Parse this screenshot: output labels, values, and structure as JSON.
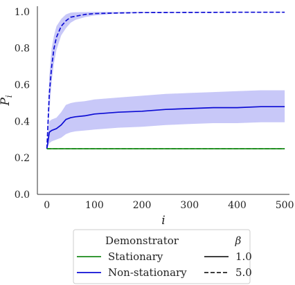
{
  "chart_data": {
    "type": "line",
    "xlabel": "i",
    "ylabel": "P_i",
    "ylabel_main": "P",
    "ylabel_sub": "i",
    "xlim": [
      -20,
      510
    ],
    "ylim": [
      0.0,
      1.03
    ],
    "xticks": [
      0,
      100,
      200,
      300,
      400,
      500
    ],
    "yticks": [
      0.0,
      0.2,
      0.4,
      0.6,
      0.8,
      1.0
    ],
    "xtick_labels": [
      "0",
      "100",
      "200",
      "300",
      "400",
      "500"
    ],
    "ytick_labels": [
      "0.0",
      "0.2",
      "0.4",
      "0.6",
      "0.8",
      "1.0"
    ],
    "grid": false,
    "series": [
      {
        "demonstrator": "Non-stationary",
        "beta": "5.0",
        "color": "#0b0bd4",
        "dash": true,
        "x": [
          0,
          5,
          10,
          15,
          20,
          30,
          40,
          50,
          60,
          80,
          100,
          150,
          200,
          300,
          400,
          500
        ],
        "y": [
          0.25,
          0.55,
          0.7,
          0.8,
          0.86,
          0.92,
          0.95,
          0.97,
          0.975,
          0.985,
          0.99,
          0.993,
          0.995,
          0.996,
          0.997,
          0.997
        ],
        "lower": [
          0.25,
          0.45,
          0.62,
          0.72,
          0.79,
          0.87,
          0.91,
          0.94,
          0.955,
          0.97,
          0.98,
          0.99,
          0.993,
          0.995,
          0.996,
          0.996
        ],
        "upper": [
          0.25,
          0.65,
          0.8,
          0.87,
          0.92,
          0.96,
          0.985,
          0.995,
          0.997,
          0.998,
          0.999,
          0.999,
          0.999,
          0.999,
          0.999,
          0.999
        ]
      },
      {
        "demonstrator": "Non-stationary",
        "beta": "1.0",
        "color": "#0b0bd4",
        "dash": false,
        "x": [
          0,
          5,
          10,
          20,
          30,
          40,
          50,
          60,
          80,
          100,
          150,
          200,
          250,
          300,
          350,
          400,
          450,
          500
        ],
        "y": [
          0.25,
          0.34,
          0.35,
          0.36,
          0.38,
          0.41,
          0.42,
          0.425,
          0.43,
          0.44,
          0.45,
          0.455,
          0.465,
          0.47,
          0.475,
          0.475,
          0.48,
          0.48
        ],
        "lower": [
          0.25,
          0.28,
          0.29,
          0.3,
          0.31,
          0.33,
          0.34,
          0.345,
          0.35,
          0.355,
          0.365,
          0.37,
          0.38,
          0.385,
          0.39,
          0.39,
          0.395,
          0.395
        ],
        "upper": [
          0.25,
          0.4,
          0.41,
          0.42,
          0.45,
          0.49,
          0.5,
          0.505,
          0.51,
          0.52,
          0.53,
          0.54,
          0.55,
          0.555,
          0.56,
          0.565,
          0.57,
          0.57
        ]
      },
      {
        "demonstrator": "Stationary",
        "beta": "5.0",
        "color": "#1a8a1a",
        "dash": true,
        "x": [
          0,
          500
        ],
        "y": [
          0.25,
          0.25
        ]
      },
      {
        "demonstrator": "Stationary",
        "beta": "1.0",
        "color": "#1a8a1a",
        "dash": false,
        "x": [
          0,
          500
        ],
        "y": [
          0.25,
          0.25
        ]
      }
    ],
    "band_color": "#c8c8f8",
    "legend": {
      "placement": "bottom",
      "title_left": "Demonstrator",
      "title_right": "β",
      "entries_left": [
        {
          "label": "Stationary",
          "color": "#1a8a1a"
        },
        {
          "label": "Non-stationary",
          "color": "#0b0bd4"
        }
      ],
      "entries_right": [
        {
          "label": "1.0",
          "style": "solid"
        },
        {
          "label": "5.0",
          "style": "dashed"
        }
      ]
    }
  }
}
